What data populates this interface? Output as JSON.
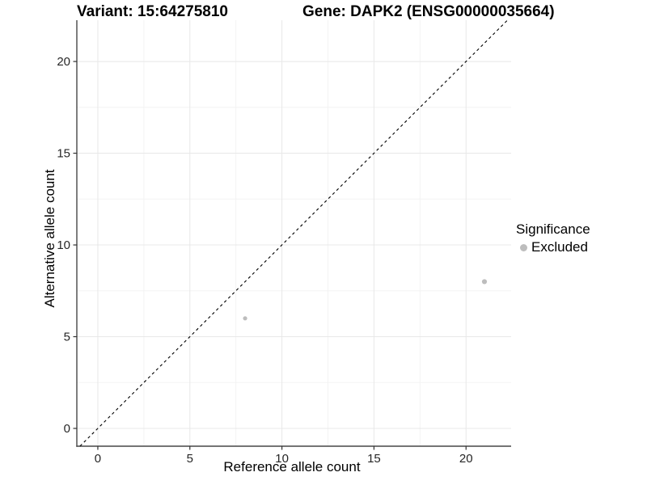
{
  "chart_data": {
    "type": "scatter",
    "title_left": "Variant: 15:64275810",
    "title_right": "Gene: DAPK2 (ENSG00000035664)",
    "xlabel": "Reference allele count",
    "ylabel": "Alternative allele count",
    "xlim": [
      -1.14,
      22.23
    ],
    "ylim": [
      -0.97,
      22.25
    ],
    "x_ticks": [
      0,
      5,
      10,
      15,
      20
    ],
    "x_tick_labels": [
      "0",
      "5",
      "10",
      "15",
      "20"
    ],
    "y_ticks": [
      0,
      5,
      10,
      15,
      20
    ],
    "y_tick_labels": [
      "0",
      "5",
      "10",
      "15",
      "20"
    ],
    "x_minor_ticks": [
      2.5,
      7.5,
      12.5,
      17.5
    ],
    "y_minor_ticks": [
      2.5,
      7.5,
      12.5,
      17.5
    ],
    "grid": true,
    "points": [
      {
        "x": 8,
        "y": 6,
        "r": 2.6,
        "series": "Excluded"
      },
      {
        "x": 21,
        "y": 8,
        "r": 3.1,
        "series": "Excluded"
      }
    ],
    "identity_line": {
      "slope": 1,
      "intercept": 0,
      "style": "dashed"
    },
    "legend": {
      "position": "right",
      "title": "Significance",
      "items": [
        {
          "label": "Excluded",
          "color": "#bdbdbd"
        }
      ]
    },
    "colors": {
      "point": "#bdbdbd",
      "grid_major": "#e8e8e8",
      "grid_minor": "#f3f3f3",
      "axis_line": "#474747",
      "tick": "#333333",
      "tick_label": "#262626",
      "axis_title": "#000000",
      "dashed_line": "#000000"
    }
  }
}
